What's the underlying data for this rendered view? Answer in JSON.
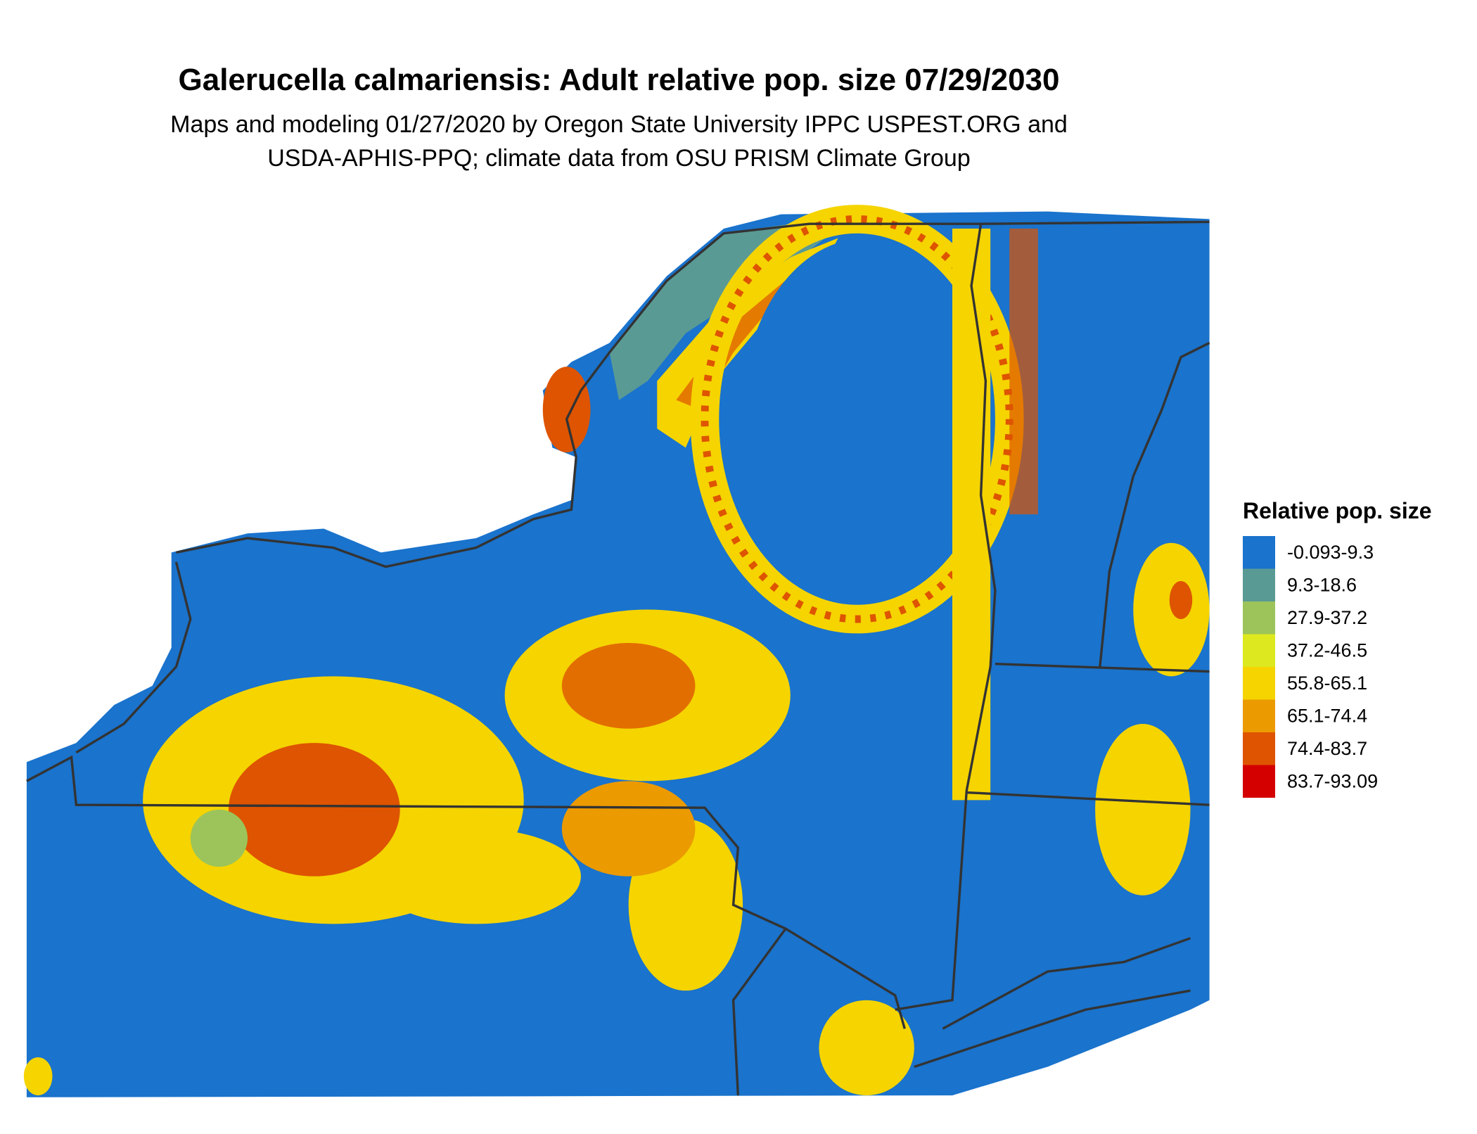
{
  "title": "Galerucella calmariensis: Adult relative pop. size 07/29/2030",
  "subtitle": [
    "Maps and modeling 01/27/2020 by Oregon State University IPPC USPEST.ORG and",
    "USDA-APHIS-PPQ; climate data from OSU PRISM Climate Group"
  ],
  "legend": {
    "title": "Relative pop. size",
    "items": [
      {
        "label": "-0.093-9.3",
        "color": "#1a73cc"
      },
      {
        "label": "9.3-18.6",
        "color": "#5a9a94"
      },
      {
        "label": "27.9-37.2",
        "color": "#9cc45a"
      },
      {
        "label": "37.2-46.5",
        "color": "#dde81e"
      },
      {
        "label": "55.8-65.1",
        "color": "#f5d400"
      },
      {
        "label": "65.1-74.4",
        "color": "#eb9a00"
      },
      {
        "label": "74.4-83.7",
        "color": "#de5400"
      },
      {
        "label": "83.7-93.09",
        "color": "#d40000"
      }
    ]
  }
}
